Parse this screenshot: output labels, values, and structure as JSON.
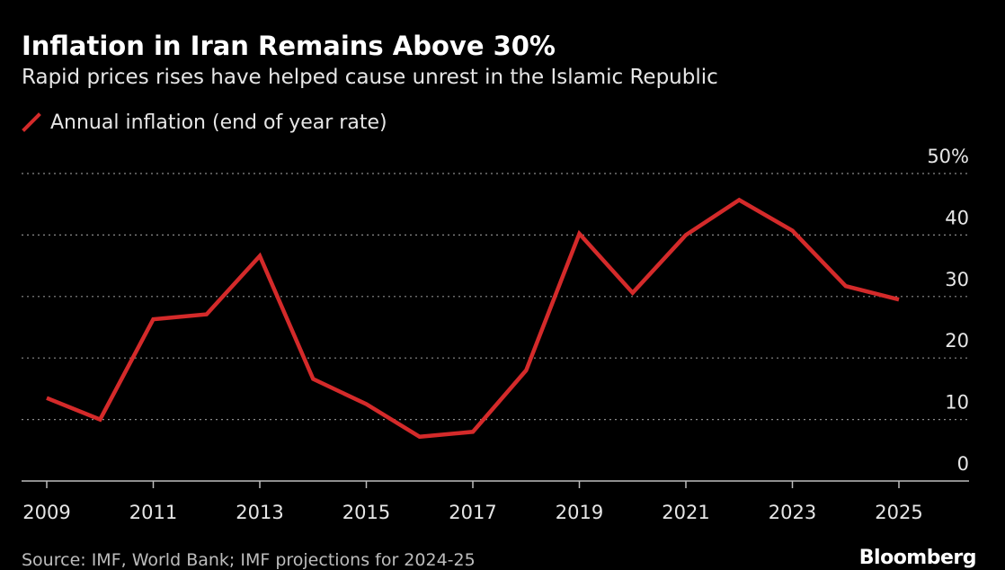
{
  "title": "Inflation in Iran Remains Above 30%",
  "subtitle": "Rapid prices rises have helped cause unrest in the Islamic Republic",
  "legend": {
    "label": "Annual inflation (end of year rate)"
  },
  "source": "Source: IMF, World Bank; IMF projections for 2024-25",
  "brand": "Bloomberg",
  "colors": {
    "line": "#d42a2a",
    "background": "#000000",
    "grid": "#8a8a8a",
    "axis": "#bdbdbd",
    "text": "#e6e6e6"
  },
  "chart_data": {
    "type": "line",
    "title": "Inflation in Iran Remains Above 30%",
    "subtitle": "Rapid prices rises have helped cause unrest in the Islamic Republic",
    "x": [
      2009,
      2010,
      2011,
      2012,
      2013,
      2014,
      2015,
      2016,
      2017,
      2018,
      2019,
      2020,
      2021,
      2022,
      2023,
      2024,
      2025
    ],
    "series": [
      {
        "name": "Annual inflation (end of year rate)",
        "values": [
          13.5,
          10,
          26.3,
          27.1,
          36.6,
          16.6,
          12.5,
          7.2,
          8,
          18,
          40.2,
          30.6,
          40,
          45.7,
          40.7,
          31.7,
          29.5
        ]
      }
    ],
    "xticks": [
      "2009",
      "2011",
      "2013",
      "2015",
      "2017",
      "2019",
      "2021",
      "2023",
      "2025"
    ],
    "yticks": [
      "0",
      "10",
      "20",
      "30",
      "40",
      "50%"
    ],
    "ylim": [
      0,
      50
    ],
    "xlim": [
      2009,
      2025
    ],
    "grid": "horizontal dotted",
    "legend": "top-left",
    "xlabel": "",
    "ylabel": ""
  }
}
